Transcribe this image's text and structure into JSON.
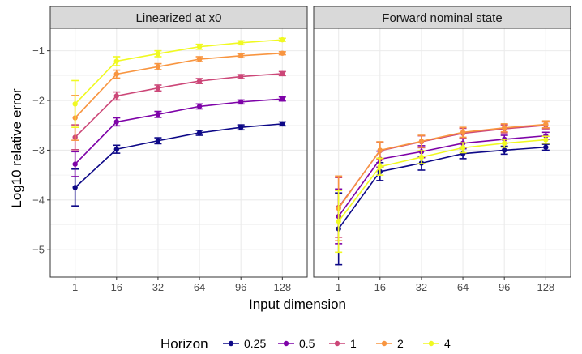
{
  "chart_data": {
    "type": "line",
    "xlabel": "Input dimension",
    "ylabel": "Log10 relative error",
    "x_categories": [
      "1",
      "16",
      "32",
      "64",
      "96",
      "128"
    ],
    "ylim": [
      -5.55,
      -0.55
    ],
    "y_ticks": [
      -5,
      -4,
      -3,
      -2,
      -1
    ],
    "y_tick_labels": [
      "−5",
      "−4",
      "−3",
      "−2",
      "−1"
    ],
    "grid": true,
    "legend": {
      "title": "Horizon",
      "position": "bottom",
      "entries": [
        "0.25",
        "0.5",
        "1",
        "2",
        "4"
      ]
    },
    "colors": {
      "0.25": "#0d0887",
      "0.5": "#7e03a8",
      "1": "#cc4778",
      "2": "#f89540",
      "4": "#f0f921"
    },
    "panels": [
      {
        "title": "Linearized at x0",
        "series": [
          {
            "name": "0.25",
            "values": [
              -3.75,
              -2.98,
              -2.81,
              -2.65,
              -2.54,
              -2.47
            ],
            "err": [
              0.37,
              0.08,
              0.06,
              0.05,
              0.05,
              0.04
            ]
          },
          {
            "name": "0.5",
            "values": [
              -3.28,
              -2.43,
              -2.28,
              -2.12,
              -2.03,
              -1.97
            ],
            "err": [
              0.25,
              0.08,
              0.06,
              0.05,
              0.04,
              0.04
            ]
          },
          {
            "name": "1",
            "values": [
              -2.74,
              -1.91,
              -1.75,
              -1.61,
              -1.52,
              -1.46
            ],
            "err": [
              0.25,
              0.08,
              0.06,
              0.05,
              0.04,
              0.04
            ]
          },
          {
            "name": "2",
            "values": [
              -2.35,
              -1.47,
              -1.32,
              -1.17,
              -1.1,
              -1.05
            ],
            "err": [
              0.45,
              0.08,
              0.06,
              0.05,
              0.04,
              0.03
            ]
          },
          {
            "name": "4",
            "values": [
              -2.07,
              -1.21,
              -1.06,
              -0.92,
              -0.84,
              -0.78
            ],
            "err": [
              0.47,
              0.09,
              0.06,
              0.05,
              0.04,
              0.03
            ]
          }
        ]
      },
      {
        "title": "Forward nominal state",
        "series": [
          {
            "name": "0.25",
            "values": [
              -4.58,
              -3.43,
              -3.26,
              -3.07,
              -3.0,
              -2.94
            ],
            "err": [
              0.72,
              0.18,
              0.14,
              0.1,
              0.08,
              0.06
            ]
          },
          {
            "name": "0.5",
            "values": [
              -4.33,
              -3.18,
              -3.03,
              -2.86,
              -2.78,
              -2.71
            ],
            "err": [
              0.55,
              0.16,
              0.12,
              0.1,
              0.08,
              0.07
            ]
          },
          {
            "name": "1",
            "values": [
              -4.15,
              -3.01,
              -2.83,
              -2.66,
              -2.57,
              -2.5
            ],
            "err": [
              0.6,
              0.17,
              0.12,
              0.1,
              0.08,
              0.07
            ]
          },
          {
            "name": "2",
            "values": [
              -4.17,
              -3.0,
              -2.82,
              -2.64,
              -2.55,
              -2.48
            ],
            "err": [
              0.65,
              0.17,
              0.12,
              0.1,
              0.08,
              0.07
            ]
          },
          {
            "name": "4",
            "values": [
              -4.43,
              -3.33,
              -3.14,
              -2.95,
              -2.86,
              -2.79
            ],
            "err": [
              0.62,
              0.17,
              0.13,
              0.1,
              0.08,
              0.07
            ]
          }
        ]
      }
    ]
  }
}
